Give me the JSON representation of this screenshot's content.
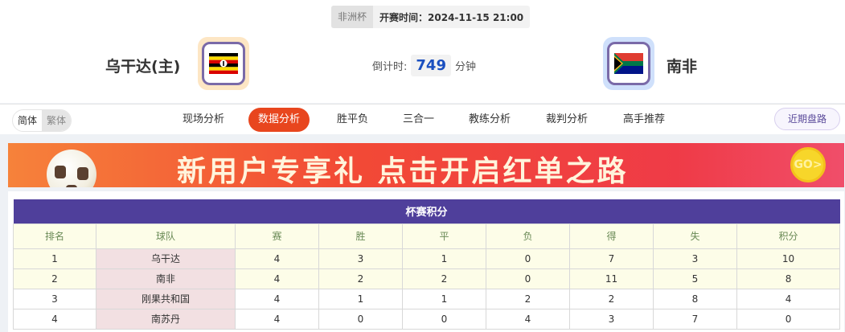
{
  "match": {
    "league": "非洲杯",
    "start_time": "开赛时间：2024-11-15 21:00"
  },
  "home": {
    "name": "乌干达(主)",
    "flag": "uganda-flag"
  },
  "away": {
    "name": "南非",
    "flag": "south-africa-flag"
  },
  "countdown": {
    "label": "倒计时:",
    "value": "749",
    "unit": "分钟"
  },
  "lang": {
    "simplified": "简体",
    "traditional": "繁体"
  },
  "tabs": [
    {
      "label": "现场分析"
    },
    {
      "label": "数据分析",
      "active": true
    },
    {
      "label": "胜平负"
    },
    {
      "label": "三合一"
    },
    {
      "label": "教练分析"
    },
    {
      "label": "裁判分析"
    },
    {
      "label": "高手推荐"
    }
  ],
  "recent_button": "近期盘路",
  "banner": {
    "text": "新用户专享礼  点击开启红单之路",
    "go": "GO>"
  },
  "colors": {
    "accent": "#e8461e",
    "table_header": "#4f3f9b",
    "countdown": "#1a4fc0"
  },
  "standings": {
    "title": "杯赛积分",
    "columns": [
      "排名",
      "球队",
      "赛",
      "胜",
      "平",
      "负",
      "得",
      "失",
      "积分"
    ],
    "rows": [
      [
        "1",
        "乌干达",
        "4",
        "3",
        "1",
        "0",
        "7",
        "3",
        "10"
      ],
      [
        "2",
        "南非",
        "4",
        "2",
        "2",
        "0",
        "11",
        "5",
        "8"
      ],
      [
        "3",
        "刚果共和国",
        "4",
        "1",
        "1",
        "2",
        "2",
        "8",
        "4"
      ],
      [
        "4",
        "南苏丹",
        "4",
        "0",
        "0",
        "4",
        "3",
        "7",
        "0"
      ]
    ]
  }
}
